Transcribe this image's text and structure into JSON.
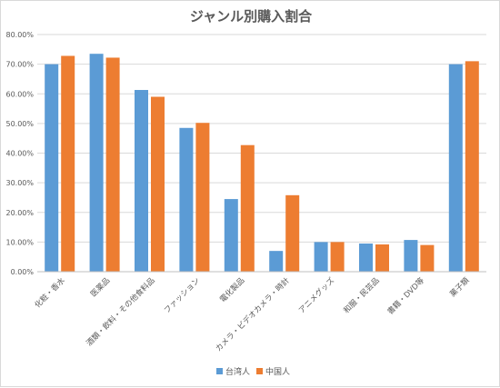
{
  "chart_data": {
    "type": "bar",
    "title": "ジャンル別購入割合",
    "xlabel": "",
    "ylabel": "",
    "ylim": [
      0,
      0.8
    ],
    "y_tick_labels": [
      "0.00%",
      "10.00%",
      "20.00%",
      "30.00%",
      "40.00%",
      "50.00%",
      "60.00%",
      "70.00%",
      "80.00%"
    ],
    "grid": true,
    "legend_position": "bottom",
    "categories": [
      "化粧・香水",
      "医薬品",
      "酒類・飲料・その他食料品",
      "ファッション",
      "電化製品",
      "カメラ・ビデオカメラ・時計",
      "アニメグッズ",
      "和服・民芸品",
      "書籍・DVD等",
      "菓子類"
    ],
    "series": [
      {
        "name": "台湾人",
        "color": "#5B9BD5",
        "values": [
          0.7,
          0.735,
          0.613,
          0.485,
          0.245,
          0.07,
          0.1,
          0.095,
          0.107,
          0.7
        ]
      },
      {
        "name": "中国人",
        "color": "#ED7D31",
        "values": [
          0.728,
          0.722,
          0.59,
          0.502,
          0.427,
          0.258,
          0.1,
          0.092,
          0.09,
          0.71
        ]
      }
    ]
  }
}
